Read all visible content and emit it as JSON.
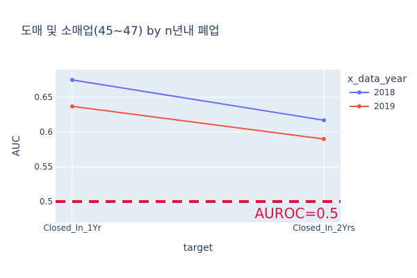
{
  "chart_data": {
    "type": "line",
    "title": "도매 및 소매업(45~47) by n년내 폐업",
    "xlabel": "target",
    "ylabel": "AUC",
    "categories": [
      "Closed_In_1Yr",
      "Closed_In_2Yrs"
    ],
    "ylim": [
      0.47,
      0.69
    ],
    "yticks": [
      0.5,
      0.55,
      0.6,
      0.65
    ],
    "ytick_labels": [
      "0.5",
      "0.55",
      "0.6",
      "0.65"
    ],
    "legend_title": "x_data_year",
    "legend_position": "right",
    "grid": true,
    "series": [
      {
        "name": "2018",
        "values": [
          0.675,
          0.617
        ],
        "color": "#636efa"
      },
      {
        "name": "2019",
        "values": [
          0.637,
          0.59
        ],
        "color": "#ef553b"
      }
    ],
    "reference_line": {
      "y": 0.5,
      "label": "AUROC=0.5",
      "color": "#dc143c"
    }
  }
}
